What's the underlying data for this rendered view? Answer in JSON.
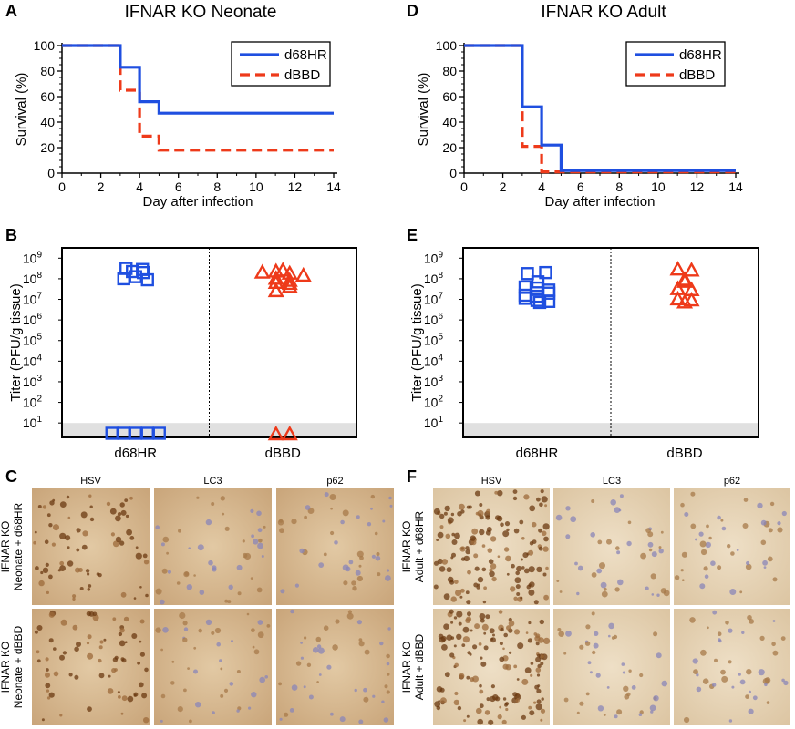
{
  "panels": {
    "A": {
      "label": "A",
      "title": "IFNAR KO Neonate"
    },
    "B": {
      "label": "B"
    },
    "C": {
      "label": "C"
    },
    "D": {
      "label": "D",
      "title": "IFNAR KO Adult"
    },
    "E": {
      "label": "E"
    },
    "F": {
      "label": "F"
    }
  },
  "colors": {
    "d68HR": "#1f4fe0",
    "dBBD": "#ee3a1a",
    "lod_band": "#e0e0e0"
  },
  "chart_data": [
    {
      "id": "A",
      "type": "line",
      "subtype": "survival-step",
      "title": "IFNAR KO Neonate",
      "xlabel": "Day after infection",
      "ylabel": "Survival (%)",
      "xlim": [
        0,
        14
      ],
      "ylim": [
        0,
        100
      ],
      "xticks": [
        "0",
        "2",
        "4",
        "6",
        "8",
        "10",
        "12",
        "14"
      ],
      "yticks": [
        "0",
        "20",
        "40",
        "60",
        "80",
        "100"
      ],
      "legend_position": "top-right",
      "series": [
        {
          "name": "d68HR",
          "style": "solid",
          "x": [
            0,
            3,
            3,
            4,
            4,
            5,
            5,
            14
          ],
          "y": [
            100,
            100,
            83,
            83,
            56,
            56,
            47,
            47
          ]
        },
        {
          "name": "dBBD",
          "style": "dashed",
          "x": [
            0,
            3,
            3,
            4,
            4,
            5,
            5,
            14
          ],
          "y": [
            100,
            100,
            65,
            65,
            29,
            29,
            18,
            18
          ]
        }
      ]
    },
    {
      "id": "D",
      "type": "line",
      "subtype": "survival-step",
      "title": "IFNAR KO Adult",
      "xlabel": "Day after infection",
      "ylabel": "Survival (%)",
      "xlim": [
        0,
        14
      ],
      "ylim": [
        0,
        100
      ],
      "xticks": [
        "0",
        "2",
        "4",
        "6",
        "8",
        "10",
        "12",
        "14"
      ],
      "yticks": [
        "0",
        "20",
        "40",
        "60",
        "80",
        "100"
      ],
      "legend_position": "top-right",
      "series": [
        {
          "name": "d68HR",
          "style": "solid",
          "x": [
            0,
            3,
            3,
            4,
            4,
            5,
            5,
            14
          ],
          "y": [
            100,
            100,
            52,
            52,
            22,
            22,
            2,
            2
          ]
        },
        {
          "name": "dBBD",
          "style": "dashed",
          "x": [
            0,
            3,
            3,
            4,
            4,
            14
          ],
          "y": [
            100,
            100,
            21,
            21,
            1,
            1
          ]
        }
      ]
    },
    {
      "id": "B",
      "type": "scatter",
      "subtype": "strip",
      "ylabel": "Titer (PFU/g tissue)",
      "yscale": "log",
      "ylim_log10": [
        0.3,
        9.5
      ],
      "ytick_exponents": [
        1,
        2,
        3,
        4,
        5,
        6,
        7,
        8,
        9
      ],
      "lod_band_log10": [
        0.3,
        1.0
      ],
      "categories": [
        "d68HR",
        "dBBD"
      ],
      "series": [
        {
          "name": "d68HR",
          "marker": "square",
          "category": "d68HR",
          "log10": [
            8.5,
            8.35,
            8.45,
            8.0,
            8.1,
            7.95,
            8.3,
            0.5,
            0.5,
            0.5,
            0.5,
            0.5
          ]
        },
        {
          "name": "dBBD",
          "marker": "triangle",
          "category": "dBBD",
          "log10": [
            8.4,
            8.3,
            8.35,
            8.25,
            8.15,
            8.0,
            7.8,
            7.9,
            7.75,
            7.4,
            7.6,
            0.45,
            0.45
          ]
        }
      ]
    },
    {
      "id": "E",
      "type": "scatter",
      "subtype": "strip",
      "ylabel": "Titer (PFU/g tissue)",
      "yscale": "log",
      "ylim_log10": [
        0.3,
        9.5
      ],
      "ytick_exponents": [
        1,
        2,
        3,
        4,
        5,
        6,
        7,
        8,
        9
      ],
      "lod_band_log10": [
        0.3,
        1.0
      ],
      "categories": [
        "d68HR",
        "dBBD"
      ],
      "series": [
        {
          "name": "d68HR",
          "marker": "square",
          "category": "d68HR",
          "log10": [
            8.25,
            8.3,
            7.85,
            7.6,
            7.55,
            7.45,
            7.2,
            7.05,
            7.15,
            6.95,
            6.85,
            6.9,
            7.3
          ]
        },
        {
          "name": "dBBD",
          "marker": "triangle",
          "category": "dBBD",
          "log10": [
            8.45,
            8.4,
            7.95,
            7.85,
            7.5,
            7.45,
            7.0,
            6.95,
            6.85
          ]
        }
      ]
    }
  ],
  "micrographs": {
    "C": {
      "columns": [
        "HSV",
        "LC3",
        "p62"
      ],
      "rows": [
        [
          "IFNAR KO",
          "Neonate + d68HR"
        ],
        [
          "IFNAR KO",
          "Neonate + dBBD"
        ]
      ]
    },
    "F": {
      "columns": [
        "HSV",
        "LC3",
        "p62"
      ],
      "rows": [
        [
          "IFNAR KO",
          "Adult + d68HR"
        ],
        [
          "IFNAR KO",
          "Adult + dBBD"
        ]
      ]
    }
  }
}
